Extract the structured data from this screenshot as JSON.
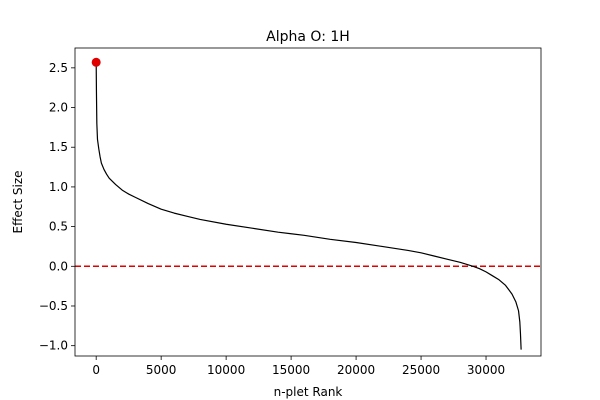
{
  "chart_data": {
    "type": "line",
    "title": "Alpha O: 1H",
    "xlabel": "n-plet Rank",
    "ylabel": "Effect Size",
    "xlim": [
      -1630,
      34230
    ],
    "ylim": [
      -1.13,
      2.75
    ],
    "xticks": [
      0,
      5000,
      10000,
      15000,
      20000,
      25000,
      30000
    ],
    "xtick_labels": [
      "0",
      "5000",
      "10000",
      "15000",
      "20000",
      "25000",
      "30000"
    ],
    "yticks": [
      -1.0,
      -0.5,
      0.0,
      0.5,
      1.0,
      1.5,
      2.0,
      2.5
    ],
    "ytick_labels": [
      "−1.0",
      "−0.5",
      "0.0",
      "0.5",
      "1.0",
      "1.5",
      "2.0",
      "2.5"
    ],
    "grid": false,
    "series": [
      {
        "color": "#000000",
        "x": [
          0,
          20,
          50,
          100,
          200,
          300,
          400,
          600,
          800,
          1000,
          1500,
          2000,
          2500,
          3000,
          4000,
          5000,
          6000,
          7000,
          8000,
          10000,
          12000,
          14000,
          15000,
          16000,
          18000,
          20000,
          22000,
          24000,
          25000,
          26000,
          27000,
          28000,
          29000,
          29500,
          30000,
          30500,
          31000,
          31500,
          32000,
          32300,
          32500,
          32600,
          32650,
          32700
        ],
        "y": [
          2.57,
          2.2,
          1.8,
          1.6,
          1.48,
          1.38,
          1.3,
          1.22,
          1.16,
          1.11,
          1.03,
          0.96,
          0.91,
          0.87,
          0.79,
          0.72,
          0.67,
          0.63,
          0.59,
          0.53,
          0.48,
          0.43,
          0.41,
          0.39,
          0.34,
          0.3,
          0.25,
          0.2,
          0.17,
          0.13,
          0.09,
          0.05,
          0.0,
          -0.03,
          -0.07,
          -0.12,
          -0.17,
          -0.24,
          -0.35,
          -0.45,
          -0.56,
          -0.7,
          -0.85,
          -1.05
        ]
      }
    ],
    "highlight_point": {
      "x": 0,
      "y": 2.57,
      "color": "#e00000"
    },
    "reference_line": {
      "y": 0.0,
      "color": "#e00000",
      "style": "dashed"
    }
  }
}
